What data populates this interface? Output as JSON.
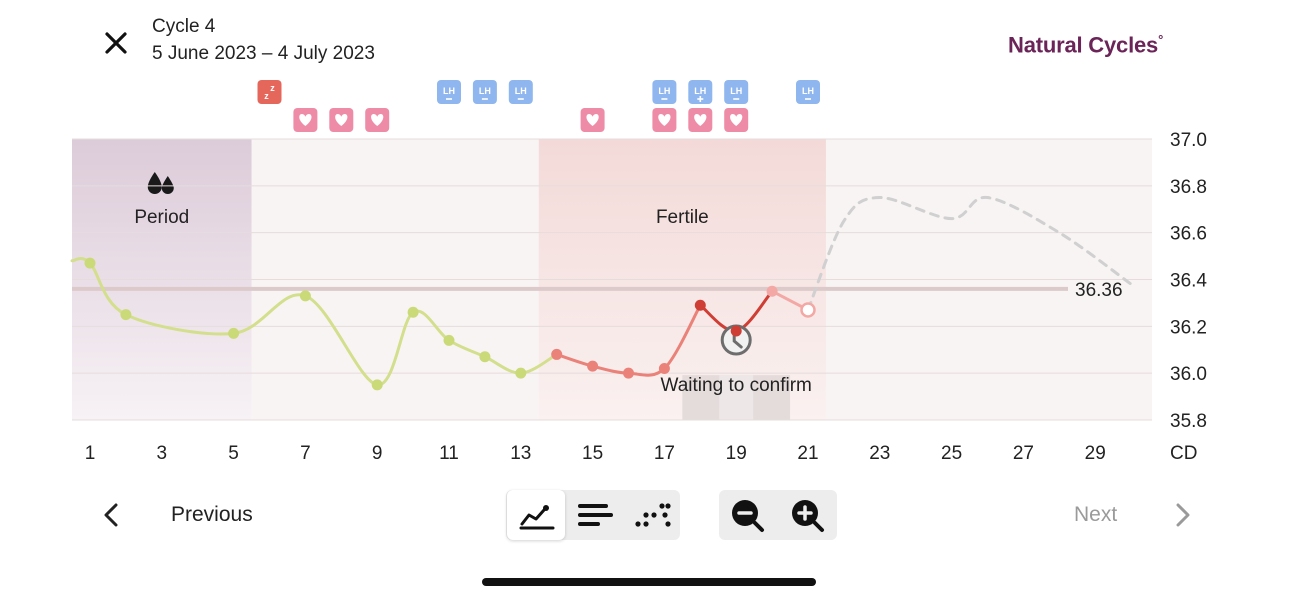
{
  "header": {
    "title": "Cycle 4",
    "dates": "5 June 2023 – 4 July 2023",
    "brand": "Natural Cycles",
    "brand_mark": "°"
  },
  "chart_data": {
    "type": "line",
    "y_range": [
      35.8,
      37.0
    ],
    "y_ticks": [
      "37.0",
      "36.8",
      "36.6",
      "36.4",
      "36.2",
      "36.0",
      "35.8"
    ],
    "x_range": [
      1,
      30
    ],
    "x_ticks": [
      "1",
      "3",
      "5",
      "7",
      "9",
      "11",
      "13",
      "15",
      "17",
      "19",
      "21",
      "23",
      "25",
      "27",
      "29"
    ],
    "x_unit_label": "CD",
    "cover_line": 36.36,
    "cover_line_label": "36.36",
    "regions": [
      {
        "label": "Period",
        "icon": "drops-icon",
        "from_day": 1,
        "to_day": 5
      },
      {
        "label": "Fertile",
        "from_day": 14,
        "to_day": 21
      }
    ],
    "waiting_label": "Waiting to confirm",
    "waiting_days": [
      18,
      20
    ],
    "series": [
      {
        "segment": "pre-fertile",
        "color": "#d3df8c",
        "points": [
          {
            "day": 1,
            "temp": 36.47
          },
          {
            "day": 2,
            "temp": 36.25
          },
          {
            "day": 5,
            "temp": 36.17
          },
          {
            "day": 7,
            "temp": 36.33
          },
          {
            "day": 9,
            "temp": 35.95
          },
          {
            "day": 10,
            "temp": 36.26
          },
          {
            "day": 11,
            "temp": 36.14
          },
          {
            "day": 12,
            "temp": 36.07
          },
          {
            "day": 13,
            "temp": 36.0
          }
        ]
      },
      {
        "segment": "fertile-early",
        "color": "#ea8279",
        "points": [
          {
            "day": 14,
            "temp": 36.08
          },
          {
            "day": 15,
            "temp": 36.03
          },
          {
            "day": 16,
            "temp": 36.0
          },
          {
            "day": 17,
            "temp": 36.02
          }
        ]
      },
      {
        "segment": "fertile-peak",
        "color": "#cf3e35",
        "points": [
          {
            "day": 18,
            "temp": 36.29
          },
          {
            "day": 19,
            "temp": 36.18
          }
        ]
      },
      {
        "segment": "fertile-late",
        "color": "#f3a8a5",
        "points": [
          {
            "day": 20,
            "temp": 36.35
          },
          {
            "day": 21,
            "temp": 36.27,
            "open": true
          }
        ]
      },
      {
        "segment": "prediction",
        "color": "#d0d0d0",
        "dashed": true,
        "points": [
          {
            "day": 21,
            "temp": 36.27
          },
          {
            "day": 22,
            "temp": 36.65
          },
          {
            "day": 23,
            "temp": 36.75
          },
          {
            "day": 25,
            "temp": 36.66
          },
          {
            "day": 26,
            "temp": 36.75
          },
          {
            "day": 28,
            "temp": 36.6
          },
          {
            "day": 30,
            "temp": 36.38
          }
        ]
      }
    ],
    "markers": {
      "sleep": [
        {
          "day": 6
        }
      ],
      "lh": [
        {
          "day": 11,
          "result": "negative"
        },
        {
          "day": 12,
          "result": "negative"
        },
        {
          "day": 13,
          "result": "negative"
        },
        {
          "day": 17,
          "result": "negative"
        },
        {
          "day": 18,
          "result": "positive"
        },
        {
          "day": 19,
          "result": "negative"
        },
        {
          "day": 21,
          "result": "negative"
        }
      ],
      "heart": [
        {
          "day": 7
        },
        {
          "day": 8
        },
        {
          "day": 9
        },
        {
          "day": 15
        },
        {
          "day": 17
        },
        {
          "day": 18
        },
        {
          "day": 19
        }
      ]
    },
    "badge_text": {
      "lh": "LH",
      "sleep": "z"
    },
    "colors": {
      "lh": "#8fb6ef",
      "heart": "#ee8ca8",
      "sleep": "#e5675c",
      "period_band": "#dccbd9",
      "fertile_band": "#f3dad8",
      "plot_bg": "#f9f4f4"
    }
  },
  "nav": {
    "previous": "Previous",
    "next": "Next"
  },
  "views": [
    {
      "name": "graph-view-button",
      "icon": "graph-icon",
      "active": true
    },
    {
      "name": "list-view-button",
      "icon": "list-icon",
      "active": false
    },
    {
      "name": "dots-view-button",
      "icon": "dots-icon",
      "active": false
    }
  ],
  "zoom": [
    {
      "name": "zoom-out-button",
      "icon": "zoom-out-icon"
    },
    {
      "name": "zoom-in-button",
      "icon": "zoom-in-icon"
    }
  ]
}
